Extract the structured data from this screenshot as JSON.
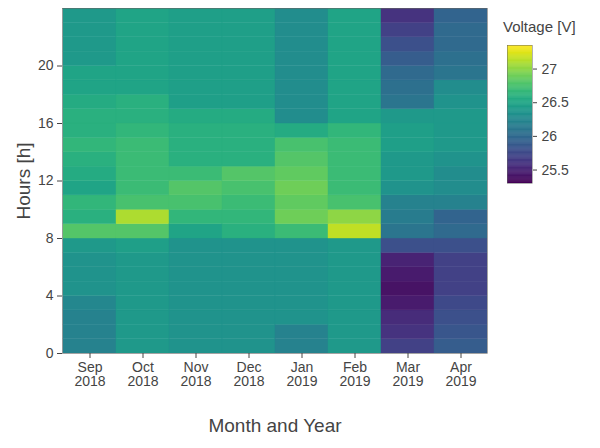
{
  "chart_data": {
    "type": "heatmap",
    "xlabel": "Month and Year",
    "ylabel": "Hours [h]",
    "categories": [
      "Sep 2018",
      "Oct 2018",
      "Nov 2018",
      "Dec 2018",
      "Jan 2019",
      "Feb 2019",
      "Mar 2019",
      "Apr 2019"
    ],
    "y": [
      0,
      1,
      2,
      3,
      4,
      5,
      6,
      7,
      8,
      9,
      10,
      11,
      12,
      13,
      14,
      15,
      16,
      17,
      18,
      19,
      20,
      21,
      22,
      23
    ],
    "ylim": [
      0,
      24
    ],
    "yticks": [
      0,
      4,
      8,
      12,
      16,
      20
    ],
    "values": [
      [
        26.2,
        26.2,
        26.2,
        26.25,
        26.35,
        26.35,
        26.35,
        26.4,
        26.8,
        26.6,
        26.65,
        26.5,
        26.55,
        26.6,
        26.65,
        26.6,
        26.6,
        26.55,
        26.5,
        26.5,
        26.4,
        26.4,
        26.4,
        26.4
      ],
      [
        26.4,
        26.4,
        26.4,
        26.4,
        26.4,
        26.4,
        26.4,
        26.45,
        26.8,
        27.1,
        26.75,
        26.7,
        26.7,
        26.7,
        26.7,
        26.65,
        26.6,
        26.6,
        26.5,
        26.5,
        26.5,
        26.5,
        26.5,
        26.5
      ],
      [
        26.35,
        26.35,
        26.35,
        26.35,
        26.35,
        26.35,
        26.35,
        26.35,
        26.5,
        26.65,
        26.75,
        26.8,
        26.7,
        26.6,
        26.6,
        26.6,
        26.55,
        26.45,
        26.45,
        26.45,
        26.45,
        26.45,
        26.45,
        26.45
      ],
      [
        26.35,
        26.35,
        26.35,
        26.35,
        26.35,
        26.35,
        26.35,
        26.35,
        26.6,
        26.65,
        26.7,
        26.75,
        26.8,
        26.6,
        26.6,
        26.6,
        26.55,
        26.45,
        26.45,
        26.45,
        26.45,
        26.45,
        26.45,
        26.45
      ],
      [
        26.2,
        26.2,
        26.35,
        26.35,
        26.35,
        26.35,
        26.35,
        26.35,
        26.7,
        26.9,
        26.85,
        26.9,
        26.85,
        26.8,
        26.75,
        26.55,
        26.3,
        26.3,
        26.3,
        26.3,
        26.3,
        26.3,
        26.3,
        26.3
      ],
      [
        26.4,
        26.4,
        26.4,
        26.4,
        26.4,
        26.4,
        26.4,
        26.4,
        27.15,
        27.0,
        26.75,
        26.7,
        26.7,
        26.7,
        26.7,
        26.65,
        26.5,
        26.5,
        26.5,
        26.5,
        26.5,
        26.5,
        26.5,
        26.5
      ],
      [
        25.7,
        25.6,
        25.55,
        25.45,
        25.4,
        25.45,
        25.5,
        25.8,
        26.1,
        26.15,
        26.2,
        26.35,
        26.4,
        26.4,
        26.45,
        26.45,
        26.4,
        26.1,
        26.05,
        26.0,
        25.9,
        25.8,
        25.7,
        25.6
      ],
      [
        25.9,
        25.85,
        25.8,
        25.75,
        25.7,
        25.7,
        25.7,
        25.8,
        26.0,
        25.95,
        26.2,
        26.3,
        26.3,
        26.35,
        26.4,
        26.4,
        26.4,
        26.35,
        26.3,
        26.1,
        26.05,
        26.0,
        26.0,
        25.95
      ]
    ],
    "colorbar": {
      "title": "Voltage [V]",
      "range": [
        25.3,
        27.35
      ],
      "ticks": [
        25.5,
        26,
        26.5,
        27
      ]
    }
  }
}
